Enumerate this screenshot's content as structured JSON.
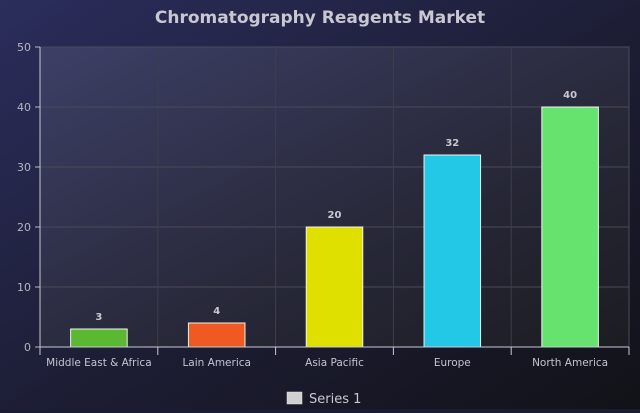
{
  "chart_data": {
    "type": "bar",
    "title": "Chromatography Reagents Market",
    "categories": [
      "Middle East & Africa",
      "Lain America",
      "Asia Pacific",
      "Europe",
      "North America"
    ],
    "values": [
      3,
      4,
      20,
      32,
      40
    ],
    "bar_colors": [
      "#5cb832",
      "#ee5a22",
      "#dfe000",
      "#22c8e6",
      "#66e36e"
    ],
    "ylim": [
      0,
      50
    ],
    "yticks": [
      0,
      10,
      20,
      30,
      40,
      50
    ],
    "grid": true,
    "legend": {
      "position": "bottom",
      "entries": [
        {
          "name": "Series 1",
          "color": "#d0d0d0"
        }
      ]
    },
    "data_labels": true
  }
}
